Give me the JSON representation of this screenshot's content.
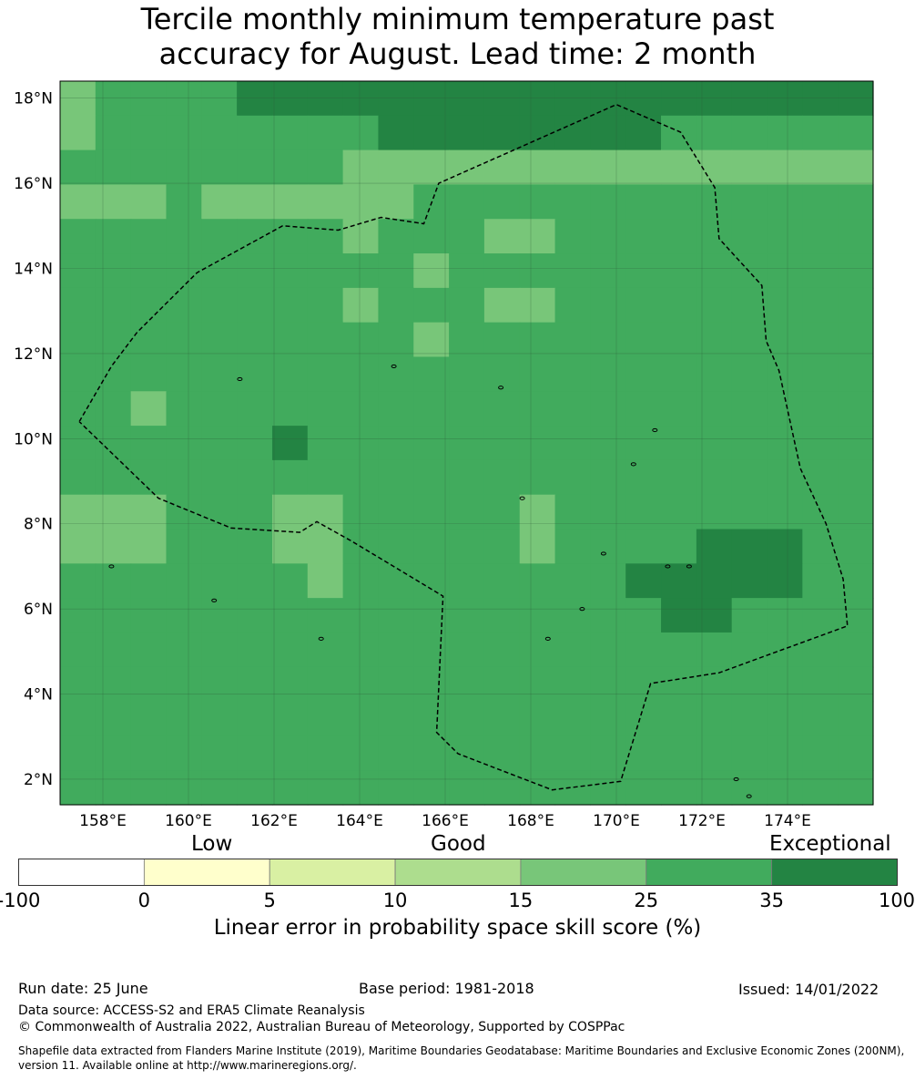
{
  "title_line1": "Tercile monthly minimum temperature past",
  "title_line2": "accuracy for August. Lead time: 2 month",
  "map": {
    "lon_range": [
      157,
      176
    ],
    "lat_range": [
      1.4,
      18.4
    ],
    "lon_ticks": [
      {
        "value": 158,
        "label": "158°E"
      },
      {
        "value": 160,
        "label": "160°E"
      },
      {
        "value": 162,
        "label": "162°E"
      },
      {
        "value": 164,
        "label": "164°E"
      },
      {
        "value": 166,
        "label": "166°E"
      },
      {
        "value": 168,
        "label": "168°E"
      },
      {
        "value": 170,
        "label": "170°E"
      },
      {
        "value": 172,
        "label": "172°E"
      },
      {
        "value": 174,
        "label": "174°E"
      }
    ],
    "lat_ticks": [
      {
        "value": 18,
        "label": "18°N"
      },
      {
        "value": 16,
        "label": "16°N"
      },
      {
        "value": 14,
        "label": "14°N"
      },
      {
        "value": 12,
        "label": "12°N"
      },
      {
        "value": 10,
        "label": "10°N"
      },
      {
        "value": 8,
        "label": "8°N"
      },
      {
        "value": 6,
        "label": "6°N"
      },
      {
        "value": 4,
        "label": "4°N"
      },
      {
        "value": 2,
        "label": "2°N"
      }
    ],
    "eez_outline": [
      [
        157.45,
        10.4
      ],
      [
        158.2,
        11.7
      ],
      [
        158.8,
        12.5
      ],
      [
        160.2,
        13.9
      ],
      [
        162.2,
        15.0
      ],
      [
        163.5,
        14.9
      ],
      [
        164.5,
        15.2
      ],
      [
        165.5,
        15.05
      ],
      [
        165.85,
        16.0
      ],
      [
        170.0,
        17.85
      ],
      [
        171.5,
        17.2
      ],
      [
        172.3,
        15.9
      ],
      [
        172.4,
        14.7
      ],
      [
        173.4,
        13.6
      ],
      [
        173.5,
        12.3
      ],
      [
        173.8,
        11.6
      ],
      [
        174.3,
        9.3
      ],
      [
        174.9,
        8.0
      ],
      [
        175.3,
        6.7
      ],
      [
        175.4,
        5.6
      ],
      [
        172.4,
        4.5
      ],
      [
        170.8,
        4.25
      ],
      [
        170.1,
        1.95
      ],
      [
        168.5,
        1.75
      ],
      [
        166.3,
        2.6
      ],
      [
        165.8,
        3.1
      ],
      [
        165.95,
        6.3
      ],
      [
        163.8,
        7.6
      ],
      [
        163.0,
        8.05
      ],
      [
        162.6,
        7.8
      ],
      [
        161.0,
        7.9
      ],
      [
        159.3,
        8.6
      ],
      [
        157.55,
        10.3
      ],
      [
        157.45,
        10.4
      ]
    ],
    "lon_cells": 23,
    "lat_cells": 21,
    "skill_grid_category": [
      [
        4,
        5,
        5,
        5,
        5,
        6,
        6,
        6,
        6,
        6,
        6,
        6,
        6,
        6,
        6,
        6,
        6,
        6,
        6,
        6,
        6,
        6,
        6
      ],
      [
        4,
        5,
        5,
        5,
        5,
        5,
        5,
        5,
        5,
        6,
        6,
        6,
        6,
        6,
        6,
        6,
        6,
        5,
        5,
        5,
        5,
        5,
        5
      ],
      [
        5,
        5,
        5,
        5,
        5,
        5,
        5,
        5,
        4,
        4,
        4,
        4,
        4,
        4,
        4,
        4,
        4,
        4,
        4,
        4,
        4,
        4,
        4
      ],
      [
        4,
        4,
        4,
        5,
        4,
        4,
        4,
        4,
        4,
        4,
        5,
        5,
        5,
        5,
        5,
        5,
        5,
        5,
        5,
        5,
        5,
        5,
        5
      ],
      [
        5,
        5,
        5,
        5,
        5,
        5,
        5,
        5,
        4,
        5,
        5,
        5,
        4,
        4,
        5,
        5,
        5,
        5,
        5,
        5,
        5,
        5,
        5
      ],
      [
        5,
        5,
        5,
        5,
        5,
        5,
        5,
        5,
        5,
        5,
        4,
        5,
        5,
        5,
        5,
        5,
        5,
        5,
        5,
        5,
        5,
        5,
        5
      ],
      [
        5,
        5,
        5,
        5,
        5,
        5,
        5,
        5,
        4,
        5,
        5,
        5,
        4,
        4,
        5,
        5,
        5,
        5,
        5,
        5,
        5,
        5,
        5
      ],
      [
        5,
        5,
        5,
        5,
        5,
        5,
        5,
        5,
        5,
        5,
        4,
        5,
        5,
        5,
        5,
        5,
        5,
        5,
        5,
        5,
        5,
        5,
        5
      ],
      [
        5,
        5,
        5,
        5,
        5,
        5,
        5,
        5,
        5,
        5,
        5,
        5,
        5,
        5,
        5,
        5,
        5,
        5,
        5,
        5,
        5,
        5,
        5
      ],
      [
        5,
        5,
        4,
        5,
        5,
        5,
        5,
        5,
        5,
        5,
        5,
        5,
        5,
        5,
        5,
        5,
        5,
        5,
        5,
        5,
        5,
        5,
        5
      ],
      [
        5,
        5,
        5,
        5,
        5,
        5,
        6,
        5,
        5,
        5,
        5,
        5,
        5,
        5,
        5,
        5,
        5,
        5,
        5,
        5,
        5,
        5,
        5
      ],
      [
        5,
        5,
        5,
        5,
        5,
        5,
        5,
        5,
        5,
        5,
        5,
        5,
        5,
        5,
        5,
        5,
        5,
        5,
        5,
        5,
        5,
        5,
        5
      ],
      [
        4,
        4,
        4,
        5,
        5,
        5,
        4,
        4,
        5,
        5,
        5,
        5,
        5,
        4,
        5,
        5,
        5,
        5,
        5,
        5,
        5,
        5,
        5
      ],
      [
        4,
        4,
        4,
        5,
        5,
        5,
        4,
        4,
        5,
        5,
        5,
        5,
        5,
        4,
        5,
        5,
        5,
        5,
        6,
        6,
        6,
        5,
        5
      ],
      [
        5,
        5,
        5,
        5,
        5,
        5,
        5,
        4,
        5,
        5,
        5,
        5,
        5,
        5,
        5,
        5,
        6,
        6,
        6,
        6,
        6,
        5,
        5
      ],
      [
        5,
        5,
        5,
        5,
        5,
        5,
        5,
        5,
        5,
        5,
        5,
        5,
        5,
        5,
        5,
        5,
        5,
        6,
        6,
        5,
        5,
        5,
        5
      ],
      [
        5,
        5,
        5,
        5,
        5,
        5,
        5,
        5,
        5,
        5,
        5,
        5,
        5,
        5,
        5,
        5,
        5,
        5,
        5,
        5,
        5,
        5,
        5
      ],
      [
        5,
        5,
        5,
        5,
        5,
        5,
        5,
        5,
        5,
        5,
        5,
        5,
        5,
        5,
        5,
        5,
        5,
        5,
        5,
        5,
        5,
        5,
        5
      ],
      [
        5,
        5,
        5,
        5,
        5,
        5,
        5,
        5,
        5,
        5,
        5,
        5,
        5,
        5,
        5,
        5,
        5,
        5,
        5,
        5,
        5,
        5,
        5
      ],
      [
        5,
        5,
        5,
        5,
        5,
        5,
        5,
        5,
        5,
        5,
        5,
        5,
        5,
        5,
        5,
        5,
        5,
        5,
        5,
        5,
        5,
        5,
        5
      ],
      [
        5,
        5,
        5,
        5,
        5,
        5,
        5,
        5,
        5,
        5,
        5,
        5,
        5,
        5,
        5,
        5,
        5,
        5,
        5,
        5,
        5,
        5,
        5
      ]
    ]
  },
  "colorbar": {
    "categories": [
      {
        "label": "Low"
      },
      {
        "label": "Good"
      },
      {
        "label": "Exceptional"
      }
    ],
    "bins": [
      {
        "color": "#ffffff"
      },
      {
        "color": "#ffffcc"
      },
      {
        "color": "#d9f0a3"
      },
      {
        "color": "#addd8e"
      },
      {
        "color": "#78c679"
      },
      {
        "color": "#41ab5d"
      },
      {
        "color": "#238443"
      }
    ],
    "ticks": [
      "-100",
      "0",
      "5",
      "10",
      "15",
      "25",
      "35",
      "100"
    ],
    "label": "Linear error in probability space skill score (%)"
  },
  "footer": {
    "run_date": "Run date: 25 June",
    "base_period": "Base period: 1981-2018",
    "issued": "Issued: 14/01/2022",
    "data_source": "Data source: ACCESS-S2 and ERA5 Climate Reanalysis",
    "copyright": "© Commonwealth of Australia 2022, Australian Bureau of Meteorology, Supported by COSPPac",
    "shapefile_line1": "Shapefile data extracted from Flanders Marine Institute (2019), Maritime Boundaries Geodatabase: Maritime Boundaries and Exclusive Economic Zones (200NM),",
    "shapefile_line2": "version 11. Available online at http://www.marineregions.org/."
  }
}
